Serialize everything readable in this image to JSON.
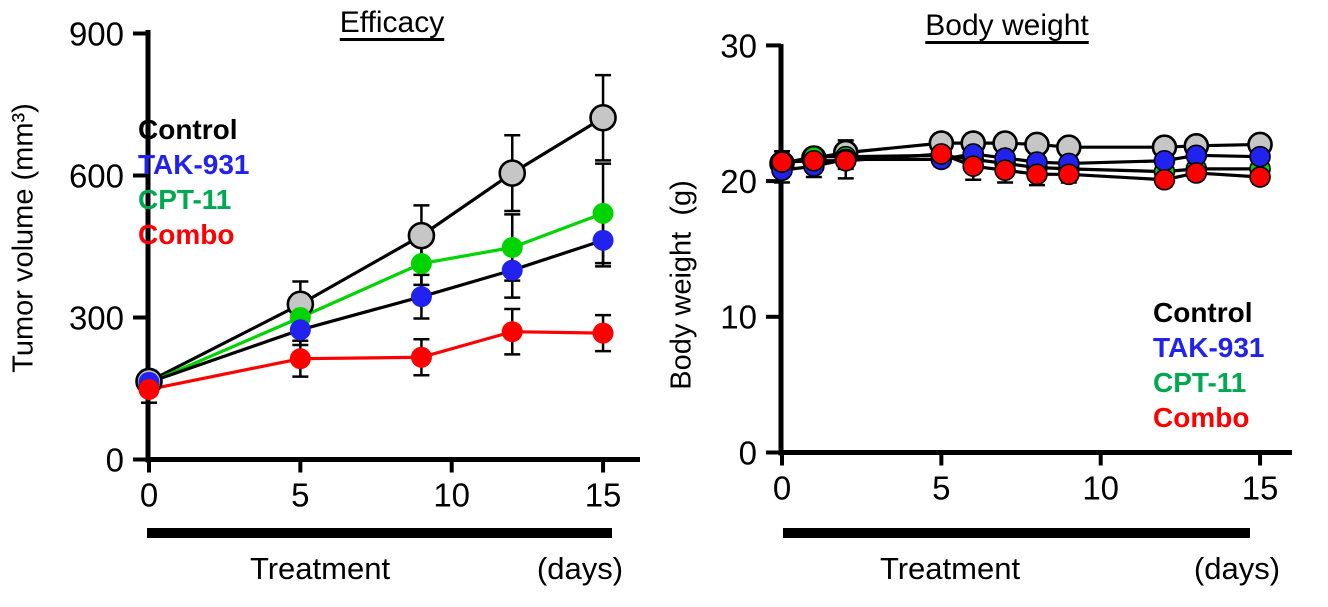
{
  "chart_data": [
    {
      "type": "line",
      "title": "Efficacy",
      "ylabel": "Tumor volume (mm³)",
      "xlabel": "Treatment",
      "x_unit_label": "(days)",
      "x_ticks": [
        0,
        5,
        10,
        15
      ],
      "y_ticks": [
        0,
        300,
        600,
        900
      ],
      "ylim": [
        0,
        900
      ],
      "xlim": [
        0,
        16.2
      ],
      "x": [
        0,
        5,
        9,
        12,
        15
      ],
      "series": [
        {
          "name": "Control",
          "line_color": "#000000",
          "marker_color": "#c6c6c6",
          "marker_outline": "#000000",
          "outline_w": 2.6,
          "values": [
            165,
            328,
            473,
            605,
            722
          ],
          "errors": [
            22,
            48,
            64,
            80,
            90
          ]
        },
        {
          "name": "CPT-11",
          "line_color": "#00d400",
          "marker_color": "#00d400",
          "marker_outline": "none",
          "outline_w": 0,
          "values": [
            162,
            300,
            414,
            448,
            520
          ],
          "errors": [
            15,
            28,
            45,
            70,
            105
          ]
        },
        {
          "name": "TAK-931",
          "line_color": "#000000",
          "marker_color": "#2222ee",
          "marker_outline": "none",
          "outline_w": 0,
          "values": [
            163,
            274,
            344,
            400,
            463
          ],
          "errors": [
            15,
            32,
            46,
            58,
            55
          ]
        },
        {
          "name": "Combo",
          "line_color": "#ff0000",
          "marker_color": "#ff0000",
          "marker_outline": "none",
          "outline_w": 0,
          "values": [
            148,
            213,
            216,
            270,
            267
          ],
          "errors": [
            28,
            38,
            38,
            48,
            38
          ]
        }
      ],
      "legend": {
        "position": "upper-left",
        "items": [
          {
            "label": "Control",
            "color": "#000000"
          },
          {
            "label": "TAK-931",
            "color": "#2222ee"
          },
          {
            "label": "CPT-11",
            "color": "#00a84f"
          },
          {
            "label": "Combo",
            "color": "#ff0000"
          }
        ]
      }
    },
    {
      "type": "line",
      "title": "Body weight",
      "ylabel": "Body weight  (g)",
      "xlabel": "Treatment",
      "x_unit_label": "(days)",
      "x_ticks": [
        0,
        5,
        10,
        15
      ],
      "y_ticks": [
        0,
        10,
        20,
        30
      ],
      "ylim": [
        0,
        30
      ],
      "xlim": [
        0,
        16
      ],
      "x": [
        0,
        1,
        2,
        5,
        6,
        7,
        8,
        9,
        12,
        13,
        15
      ],
      "series": [
        {
          "name": "Control",
          "line_color": "#000000",
          "marker_color": "#c6c6c6",
          "marker_outline": "#000000",
          "outline_w": 2.6,
          "values": [
            21.3,
            21.7,
            22.1,
            22.8,
            22.8,
            22.8,
            22.7,
            22.5,
            22.5,
            22.6,
            22.7
          ],
          "errors": [
            0.5,
            0.5,
            0.5,
            0.4,
            0.4,
            0.4,
            0.4,
            0.4,
            0.4,
            0.4,
            0.4
          ]
        },
        {
          "name": "CPT-11",
          "line_color": "#000000",
          "marker_color": "#00d400",
          "marker_outline": "#000000",
          "outline_w": 1.6,
          "values": [
            21.3,
            21.8,
            21.8,
            21.9,
            21.6,
            21.3,
            21.0,
            20.9,
            20.7,
            20.9,
            20.9
          ],
          "errors": [
            0.5,
            0.5,
            0.5,
            0.5,
            0.5,
            0.5,
            0.5,
            0.5,
            0.5,
            0.5,
            0.5
          ]
        },
        {
          "name": "TAK-931",
          "line_color": "#000000",
          "marker_color": "#2222ee",
          "marker_outline": "#000000",
          "outline_w": 1.6,
          "values": [
            20.8,
            21.1,
            21.6,
            21.6,
            22.0,
            21.7,
            21.4,
            21.3,
            21.5,
            21.9,
            21.8
          ],
          "errors": [
            0.9,
            0.8,
            1.4,
            0.5,
            0.5,
            0.5,
            0.5,
            0.5,
            0.5,
            0.5,
            0.5
          ]
        },
        {
          "name": "Combo",
          "line_color": "#000000",
          "marker_color": "#ff0000",
          "marker_outline": "#000000",
          "outline_w": 1.6,
          "values": [
            21.4,
            21.5,
            21.5,
            22.0,
            21.1,
            20.8,
            20.5,
            20.5,
            20.1,
            20.6,
            20.3
          ],
          "errors": [
            0.8,
            0.7,
            0.6,
            0.6,
            1.0,
            0.9,
            0.8,
            0.6,
            0.5,
            0.5,
            0.5
          ]
        }
      ],
      "legend": {
        "position": "lower-right",
        "items": [
          {
            "label": "Control",
            "color": "#000000"
          },
          {
            "label": "TAK-931",
            "color": "#2222ee"
          },
          {
            "label": "CPT-11",
            "color": "#00a84f"
          },
          {
            "label": "Combo",
            "color": "#ff0000"
          }
        ]
      }
    }
  ]
}
